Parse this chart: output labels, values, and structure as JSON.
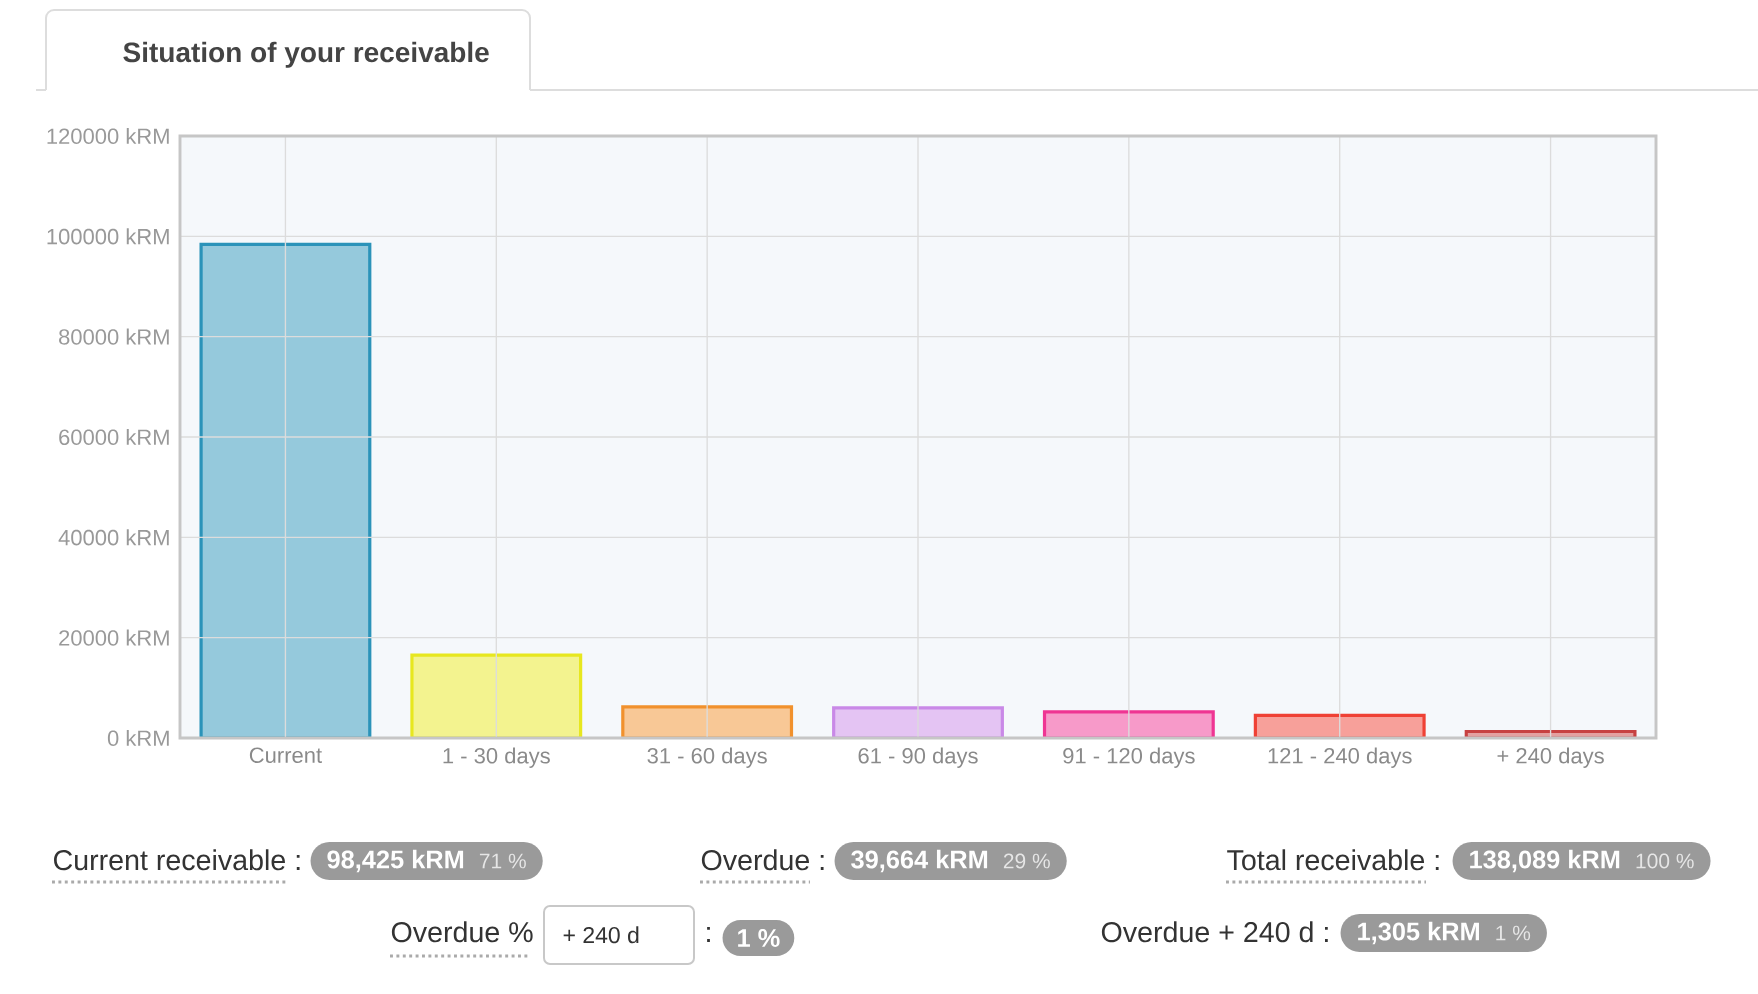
{
  "chart_data": {
    "type": "bar",
    "title": "Situation of your receivable",
    "categories": [
      "Current",
      "1 - 30 days",
      "31 - 60 days",
      "61 - 90 days",
      "91 - 120 days",
      "121 - 240 days",
      "+ 240 days"
    ],
    "values": [
      98400,
      16500,
      6200,
      6000,
      5200,
      4500,
      1300
    ],
    "colors": [
      "#95c9dc",
      "#f3f38f",
      "#f8c896",
      "#e4c4f3",
      "#f79ac9",
      "#f7a09a",
      "#e3a0a0"
    ],
    "ylim": [
      0,
      120000
    ],
    "yticks": [
      {
        "value": 0,
        "label": "0 kRM"
      },
      {
        "value": 20000,
        "label": "20000 kRM"
      },
      {
        "value": 40000,
        "label": "40000 kRM"
      },
      {
        "value": 60000,
        "label": "60000 kRM"
      },
      {
        "value": 80000,
        "label": "80000 kRM"
      },
      {
        "value": 100000,
        "label": "100000 kRM"
      },
      {
        "value": 120000,
        "label": "120000 kRM"
      }
    ],
    "grid": true,
    "annotations": [
      "Current receivable :",
      "98,425 kRM",
      "71 %",
      "Overdue :",
      "39,664 kRM",
      "29 %",
      "Total receivable :",
      "138,089 kRM",
      "100 %",
      "Overdue %",
      "+ 240 d",
      ":",
      "1 %",
      "Overdue + 240 d :",
      "1,305 kRM",
      "1 %"
    ]
  }
}
